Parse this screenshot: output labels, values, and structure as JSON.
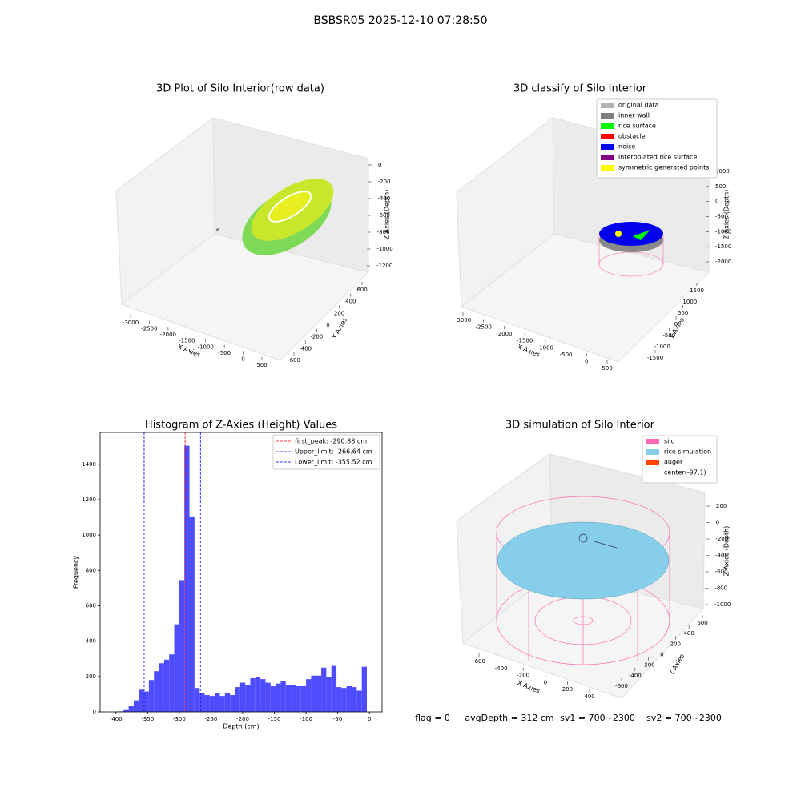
{
  "title": "BSBSR05 2025-12-10 07:28:50",
  "footer": [
    "flag = 0",
    "avgDepth = 312 cm",
    "sv1 = 700~2300",
    "sv2 = 700~2300"
  ],
  "chart_data": [
    {
      "type": "scatter3d",
      "title": "3D Plot of Silo Interior(row data)",
      "xlabel": "X Axies",
      "ylabel": "Y Axies",
      "zlabel": "Z Axies (Depth)",
      "xticks": [
        -3000,
        -2500,
        -2000,
        -1500,
        -1000,
        -500,
        0,
        500
      ],
      "yticks": [
        -600,
        -400,
        -200,
        0,
        200,
        400,
        600
      ],
      "zticks": [
        0,
        -200,
        -400,
        -600,
        -800,
        -1000,
        -1200
      ]
    },
    {
      "type": "scatter3d",
      "title": "3D classify of Silo Interior",
      "xlabel": "X Axies",
      "ylabel": "Y Axies",
      "zlabel": "Z Axies (Depth)",
      "xticks": [
        -3000,
        -2500,
        -2000,
        -1500,
        -1000,
        -500,
        0,
        500
      ],
      "yticks": [
        -1500,
        -1000,
        -500,
        0,
        500,
        1000,
        1500
      ],
      "zticks": [
        1000,
        500,
        0,
        -500,
        -1000,
        -1500,
        -2000
      ],
      "legend": [
        {
          "name": "original data",
          "color": "#b3b3b3"
        },
        {
          "name": "inner wall",
          "color": "#808080"
        },
        {
          "name": "rice surface",
          "color": "#00ff00"
        },
        {
          "name": "obstacle",
          "color": "#ff0000"
        },
        {
          "name": "noise",
          "color": "#0000ff"
        },
        {
          "name": "interpolated rice surface",
          "color": "#800080"
        },
        {
          "name": "symmetric generated points",
          "color": "#ffff00"
        }
      ]
    },
    {
      "type": "histogram",
      "title": "Histogram of Z-Axies (Height) Values",
      "xlabel": "Depth (cm)",
      "ylabel": "Frequency",
      "color": "#4d4dff",
      "bins": [
        -396,
        -388,
        -380,
        -372,
        -364,
        -356,
        -348,
        -340,
        -332,
        -324,
        -316,
        -308,
        -300,
        -292,
        -284,
        -276,
        -268,
        -260,
        -252,
        -244,
        -236,
        -228,
        -220,
        -212,
        -204,
        -196,
        -188,
        -180,
        -172,
        -164,
        -156,
        -148,
        -140,
        -132,
        -124,
        -116,
        -108,
        -100,
        -92,
        -84,
        -76,
        -68,
        -60,
        -52,
        -44,
        -36,
        -28,
        -20,
        -12,
        -4
      ],
      "values": [
        3,
        15,
        35,
        65,
        125,
        115,
        180,
        230,
        275,
        295,
        325,
        495,
        745,
        1505,
        1105,
        135,
        105,
        95,
        90,
        105,
        90,
        105,
        95,
        140,
        165,
        150,
        190,
        195,
        185,
        165,
        145,
        160,
        175,
        150,
        150,
        145,
        145,
        185,
        205,
        205,
        250,
        195,
        260,
        140,
        135,
        145,
        140,
        120,
        255
      ],
      "xlim": [
        -425,
        20
      ],
      "ylim": [
        0,
        1580
      ],
      "xticks": [
        -400,
        -350,
        -300,
        -250,
        -200,
        -150,
        -100,
        -50,
        0
      ],
      "yticks": [
        0,
        200,
        400,
        600,
        800,
        1000,
        1200,
        1400
      ],
      "vlines": [
        {
          "name": "first_peak: -290.88 cm",
          "value": -290.88,
          "color": "#ff0000"
        },
        {
          "name": "Upper_limit: -266.64 cm",
          "value": -266.64,
          "color": "#0000ff"
        },
        {
          "name": "Lower_limit: -355.52 cm",
          "value": -355.52,
          "color": "#0000ff"
        }
      ]
    },
    {
      "type": "scatter3d",
      "title": "3D simulation of Silo Interior",
      "xlabel": "X Axies",
      "ylabel": "Y Axies",
      "zlabel": "Z Axies (Depth)",
      "xticks": [
        -600,
        -400,
        -200,
        0,
        200,
        400
      ],
      "yticks": [
        -600,
        -400,
        -200,
        0,
        200,
        400,
        600
      ],
      "zticks": [
        200,
        0,
        -200,
        -400,
        -600,
        -800,
        -1000
      ],
      "legend": [
        {
          "name": "silo",
          "color": "#ff69b4"
        },
        {
          "name": "rice simulation",
          "color": "#87ceeb"
        },
        {
          "name": "auger",
          "color": "#ff4500"
        },
        {
          "name": "center(-97,1)"
        }
      ]
    }
  ]
}
